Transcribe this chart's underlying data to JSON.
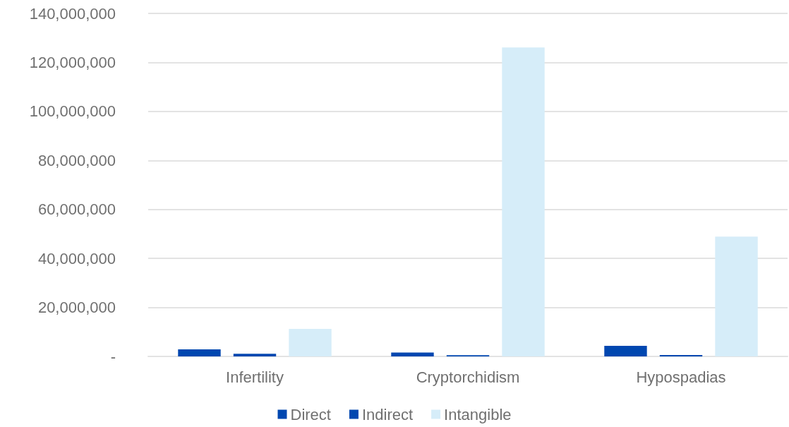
{
  "chart_data": {
    "type": "bar",
    "categories": [
      "Infertility",
      "Cryptorchidism",
      "Hypospadias"
    ],
    "series": [
      {
        "name": "Direct",
        "color": "#0047b0",
        "values": [
          2900000,
          1600000,
          4300000
        ]
      },
      {
        "name": "Indirect",
        "color": "#0047b0",
        "values": [
          1100000,
          500000,
          600000
        ]
      },
      {
        "name": "Intangible",
        "color": "#d6edf9",
        "values": [
          11200000,
          126100000,
          48900000
        ]
      }
    ],
    "ylim": [
      0,
      140000000
    ],
    "yticks": [
      {
        "value": 0,
        "label": "-"
      },
      {
        "value": 20000000,
        "label": "20,000,000"
      },
      {
        "value": 40000000,
        "label": "40,000,000"
      },
      {
        "value": 60000000,
        "label": "60,000,000"
      },
      {
        "value": 80000000,
        "label": "80,000,000"
      },
      {
        "value": 100000000,
        "label": "100,000,000"
      },
      {
        "value": 120000000,
        "label": "120,000,000"
      },
      {
        "value": 140000000,
        "label": "140,000,000"
      }
    ],
    "grid": "y",
    "legend": "bottom"
  }
}
